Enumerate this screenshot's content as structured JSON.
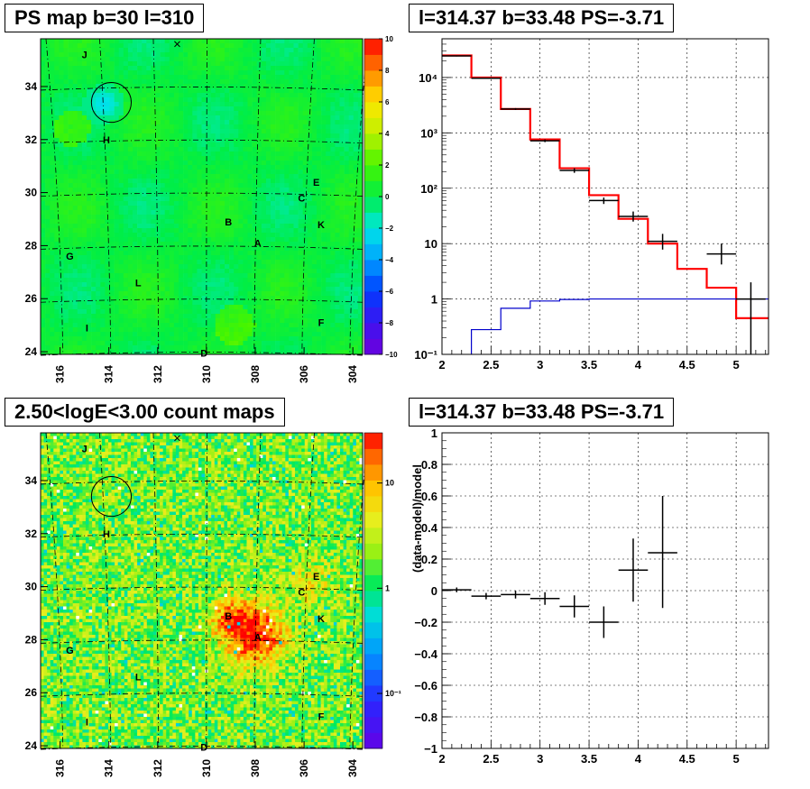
{
  "titles": {
    "ps_map": "PS map b=30 l=310",
    "spectrum": "l=314.37 b=33.48 PS=-3.71",
    "count_map": "2.50<logE<3.00 count maps",
    "residual": "l=314.37 b=33.48 PS=-3.71"
  },
  "chart_data": [
    {
      "type": "heatmap",
      "title": "PS map b=30 l=310",
      "xlabel": "",
      "ylabel": "",
      "x_ticks": [
        "316",
        "314",
        "312",
        "310",
        "308",
        "306",
        "304"
      ],
      "y_ticks": [
        "24",
        "26",
        "28",
        "30",
        "32",
        "34"
      ],
      "xlim": [
        316.8,
        303.6
      ],
      "ylim": [
        23.9,
        35.8
      ],
      "colorbar": {
        "scale": "linear",
        "range": [
          -10,
          10
        ],
        "ticks": [
          "10",
          "8",
          "6",
          "4",
          "2",
          "0",
          "−2",
          "−4",
          "−6",
          "−8",
          "−10"
        ]
      },
      "source_labels": [
        {
          "name": "J",
          "l": 315.0,
          "b": 35.2
        },
        {
          "name": "H",
          "l": 314.1,
          "b": 32.0
        },
        {
          "name": "E",
          "l": 305.5,
          "b": 30.4
        },
        {
          "name": "C",
          "l": 306.1,
          "b": 29.8
        },
        {
          "name": "B",
          "l": 309.1,
          "b": 28.9
        },
        {
          "name": "K",
          "l": 305.3,
          "b": 28.8
        },
        {
          "name": "A",
          "l": 307.9,
          "b": 28.1
        },
        {
          "name": "G",
          "l": 315.6,
          "b": 27.6
        },
        {
          "name": "L",
          "l": 312.8,
          "b": 26.6
        },
        {
          "name": "I",
          "l": 314.9,
          "b": 24.9
        },
        {
          "name": "F",
          "l": 305.3,
          "b": 25.1
        },
        {
          "name": "D",
          "l": 310.1,
          "b": 23.95
        }
      ],
      "circle": {
        "l": 313.9,
        "b": 33.4,
        "r": 0.75
      },
      "cross": {
        "l": 311.2,
        "b": 35.6
      },
      "grid": true
    },
    {
      "type": "line",
      "title": "l=314.37 b=33.48 PS=-3.71",
      "xlabel": "",
      "ylabel": "",
      "xlim": [
        2,
        5.33
      ],
      "ylim": [
        0.1,
        50000
      ],
      "yscale": "log",
      "x_ticks": [
        "2",
        "2.5",
        "3",
        "3.5",
        "4",
        "4.5",
        "5"
      ],
      "y_ticks": [
        "10⁻¹",
        "1",
        "10",
        "10²",
        "10³",
        "10⁴"
      ],
      "grid": true,
      "series": [
        {
          "color": "#ff0000",
          "step": true,
          "edges": [
            2.0,
            2.3,
            2.6,
            2.9,
            3.2,
            3.5,
            3.8,
            4.1,
            4.4,
            4.7,
            5.0,
            5.33
          ],
          "values": [
            25000,
            10000,
            2700,
            760,
            230,
            75,
            28,
            10,
            3.5,
            1.6,
            0.45
          ]
        },
        {
          "color": "#0000cc",
          "step": true,
          "edges": [
            2.0,
            2.3,
            2.6,
            2.9,
            3.2,
            3.5,
            3.8,
            4.1,
            4.4,
            4.7,
            5.0,
            5.33
          ],
          "values": [
            0.02,
            0.28,
            0.68,
            0.92,
            0.98,
            1.0,
            1.0,
            1.0,
            1.0,
            1.0,
            1.0
          ]
        },
        {
          "color": "#000000",
          "errorbars": true,
          "points": [
            {
              "x": 2.15,
              "y": 24500,
              "xerr": 0.15,
              "ylo": 24000,
              "yhi": 25000
            },
            {
              "x": 2.45,
              "y": 9700,
              "xerr": 0.15,
              "ylo": 9500,
              "yhi": 9900
            },
            {
              "x": 2.75,
              "y": 2700,
              "xerr": 0.15,
              "ylo": 2600,
              "yhi": 2800
            },
            {
              "x": 3.05,
              "y": 720,
              "xerr": 0.15,
              "ylo": 680,
              "yhi": 760
            },
            {
              "x": 3.35,
              "y": 210,
              "xerr": 0.15,
              "ylo": 190,
              "yhi": 230
            },
            {
              "x": 3.65,
              "y": 60,
              "xerr": 0.15,
              "ylo": 52,
              "yhi": 68
            },
            {
              "x": 3.95,
              "y": 31,
              "xerr": 0.15,
              "ylo": 25,
              "yhi": 38
            },
            {
              "x": 4.25,
              "y": 11,
              "xerr": 0.15,
              "ylo": 7.8,
              "yhi": 15
            },
            {
              "x": 4.85,
              "y": 6.5,
              "xerr": 0.15,
              "ylo": 4.2,
              "yhi": 10
            },
            {
              "x": 5.15,
              "y": 1.0,
              "xerr": 0.15,
              "ylo": 0.1,
              "yhi": 2.0
            }
          ]
        }
      ]
    },
    {
      "type": "heatmap",
      "title": "2.50<logE<3.00 count maps",
      "xlabel": "",
      "ylabel": "",
      "x_ticks": [
        "316",
        "314",
        "312",
        "310",
        "308",
        "306",
        "304"
      ],
      "y_ticks": [
        "24",
        "26",
        "28",
        "30",
        "32",
        "34"
      ],
      "xlim": [
        316.8,
        303.6
      ],
      "ylim": [
        23.9,
        35.8
      ],
      "colorbar": {
        "scale": "log",
        "range": [
          0.03,
          30
        ],
        "ticks": [
          "10",
          "1",
          "10⁻¹"
        ]
      },
      "source_labels": [
        {
          "name": "J",
          "l": 315.0,
          "b": 35.2
        },
        {
          "name": "H",
          "l": 314.1,
          "b": 32.0
        },
        {
          "name": "E",
          "l": 305.5,
          "b": 30.4
        },
        {
          "name": "C",
          "l": 306.1,
          "b": 29.8
        },
        {
          "name": "B",
          "l": 309.1,
          "b": 28.9
        },
        {
          "name": "K",
          "l": 305.3,
          "b": 28.8
        },
        {
          "name": "A",
          "l": 307.9,
          "b": 28.1
        },
        {
          "name": "G",
          "l": 315.6,
          "b": 27.6
        },
        {
          "name": "L",
          "l": 312.8,
          "b": 26.6
        },
        {
          "name": "I",
          "l": 314.9,
          "b": 24.9
        },
        {
          "name": "F",
          "l": 305.3,
          "b": 25.1
        },
        {
          "name": "D",
          "l": 310.1,
          "b": 23.95
        }
      ],
      "circle": {
        "l": 313.9,
        "b": 33.4,
        "r": 0.75
      },
      "cross": {
        "l": 311.2,
        "b": 35.6
      },
      "grid": true
    },
    {
      "type": "scatter",
      "title": "l=314.37 b=33.48 PS=-3.71",
      "xlabel": "",
      "ylabel": "(data-model)/model",
      "xlim": [
        2,
        5.33
      ],
      "ylim": [
        -1,
        1
      ],
      "x_ticks": [
        "2",
        "2.5",
        "3",
        "3.5",
        "4",
        "4.5",
        "5"
      ],
      "y_ticks": [
        "−1",
        "−0.8",
        "−0.6",
        "−0.4",
        "−0.2",
        "0",
        "0.2",
        "0.4",
        "0.6",
        "0.8",
        "1"
      ],
      "grid": true,
      "points": [
        {
          "x": 2.15,
          "y": 0.005,
          "xerr": 0.15,
          "ylo": -0.01,
          "yhi": 0.02
        },
        {
          "x": 2.45,
          "y": -0.035,
          "xerr": 0.15,
          "ylo": -0.055,
          "yhi": -0.015
        },
        {
          "x": 2.75,
          "y": -0.025,
          "xerr": 0.15,
          "ylo": -0.05,
          "yhi": 0.0
        },
        {
          "x": 3.05,
          "y": -0.05,
          "xerr": 0.15,
          "ylo": -0.09,
          "yhi": -0.01
        },
        {
          "x": 3.35,
          "y": -0.1,
          "xerr": 0.15,
          "ylo": -0.17,
          "yhi": -0.03
        },
        {
          "x": 3.65,
          "y": -0.2,
          "xerr": 0.15,
          "ylo": -0.3,
          "yhi": -0.1
        },
        {
          "x": 3.95,
          "y": 0.13,
          "xerr": 0.15,
          "ylo": -0.07,
          "yhi": 0.33
        },
        {
          "x": 4.25,
          "y": 0.24,
          "xerr": 0.15,
          "ylo": -0.11,
          "yhi": 0.6
        }
      ]
    }
  ]
}
